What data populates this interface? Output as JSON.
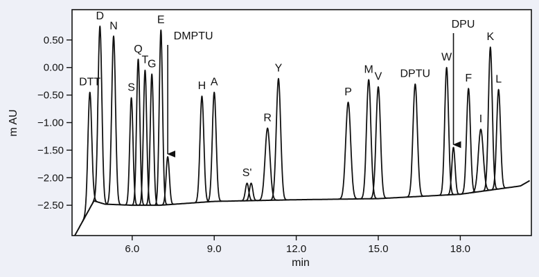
{
  "chart_data": {
    "type": "line",
    "xlabel": "min",
    "ylabel": "m AU",
    "xlim": [
      3.8,
      20.6
    ],
    "ylim": [
      -3.05,
      1.05
    ],
    "x_ticks": [
      6.0,
      9.0,
      12.0,
      15.0,
      18.0
    ],
    "x_tick_labels": [
      "6.0",
      "9.0",
      "12.0",
      "15.0",
      "18.0"
    ],
    "y_ticks": [
      0.5,
      0.0,
      -0.5,
      -1.0,
      -1.5,
      -2.0,
      -2.5
    ],
    "y_tick_labels": [
      "0.50",
      "0.00",
      "−0.50",
      "−1.00",
      "−1.50",
      "−2.00",
      "−2.50"
    ],
    "grid": false,
    "baseline": [
      [
        3.9,
        -3.05
      ],
      [
        4.6,
        -2.42
      ],
      [
        5.0,
        -2.48
      ],
      [
        6.0,
        -2.5
      ],
      [
        7.0,
        -2.5
      ],
      [
        9.0,
        -2.43
      ],
      [
        12.0,
        -2.4
      ],
      [
        15.0,
        -2.38
      ],
      [
        18.0,
        -2.3
      ],
      [
        20.2,
        -2.15
      ],
      [
        20.55,
        -2.05
      ]
    ],
    "peaks": [
      {
        "label": "DTT",
        "x": 4.45,
        "y": -0.45,
        "width": 0.07
      },
      {
        "label": "D",
        "x": 4.82,
        "y": 0.75,
        "width": 0.07
      },
      {
        "label": "N",
        "x": 5.32,
        "y": 0.57,
        "width": 0.07
      },
      {
        "label": "S",
        "x": 5.97,
        "y": -0.55,
        "width": 0.06
      },
      {
        "label": "Q",
        "x": 6.22,
        "y": 0.15,
        "width": 0.06
      },
      {
        "label": "T",
        "x": 6.47,
        "y": -0.05,
        "width": 0.06
      },
      {
        "label": "G",
        "x": 6.72,
        "y": -0.12,
        "width": 0.06
      },
      {
        "label": "E",
        "x": 7.05,
        "y": 0.68,
        "width": 0.06
      },
      {
        "label": "DMPTU",
        "x": 7.3,
        "y": -1.62,
        "width": 0.06
      },
      {
        "label": "H",
        "x": 8.55,
        "y": -0.52,
        "width": 0.07
      },
      {
        "label": "A",
        "x": 9.0,
        "y": -0.45,
        "width": 0.07
      },
      {
        "label": "S'",
        "x": 10.2,
        "y": -2.1,
        "width": 0.06
      },
      {
        "label": "",
        "x": 10.35,
        "y": -2.1,
        "width": 0.06
      },
      {
        "label": "R",
        "x": 10.95,
        "y": -1.1,
        "width": 0.09
      },
      {
        "label": "Y",
        "x": 11.35,
        "y": -0.2,
        "width": 0.08
      },
      {
        "label": "P",
        "x": 13.9,
        "y": -0.63,
        "width": 0.09
      },
      {
        "label": "M",
        "x": 14.65,
        "y": -0.22,
        "width": 0.08
      },
      {
        "label": "V",
        "x": 15.0,
        "y": -0.35,
        "width": 0.08
      },
      {
        "label": "DPTU",
        "x": 16.35,
        "y": -0.3,
        "width": 0.08
      },
      {
        "label": "W",
        "x": 17.5,
        "y": 0.0,
        "width": 0.07
      },
      {
        "label": "DPU",
        "x": 17.75,
        "y": -1.45,
        "width": 0.06
      },
      {
        "label": "F",
        "x": 18.3,
        "y": -0.38,
        "width": 0.07
      },
      {
        "label": "I",
        "x": 18.75,
        "y": -1.12,
        "width": 0.09
      },
      {
        "label": "K",
        "x": 19.1,
        "y": 0.37,
        "width": 0.07
      },
      {
        "label": "L",
        "x": 19.4,
        "y": -0.4,
        "width": 0.07
      }
    ],
    "arrows": [
      "DMPTU",
      "DPU"
    ]
  }
}
